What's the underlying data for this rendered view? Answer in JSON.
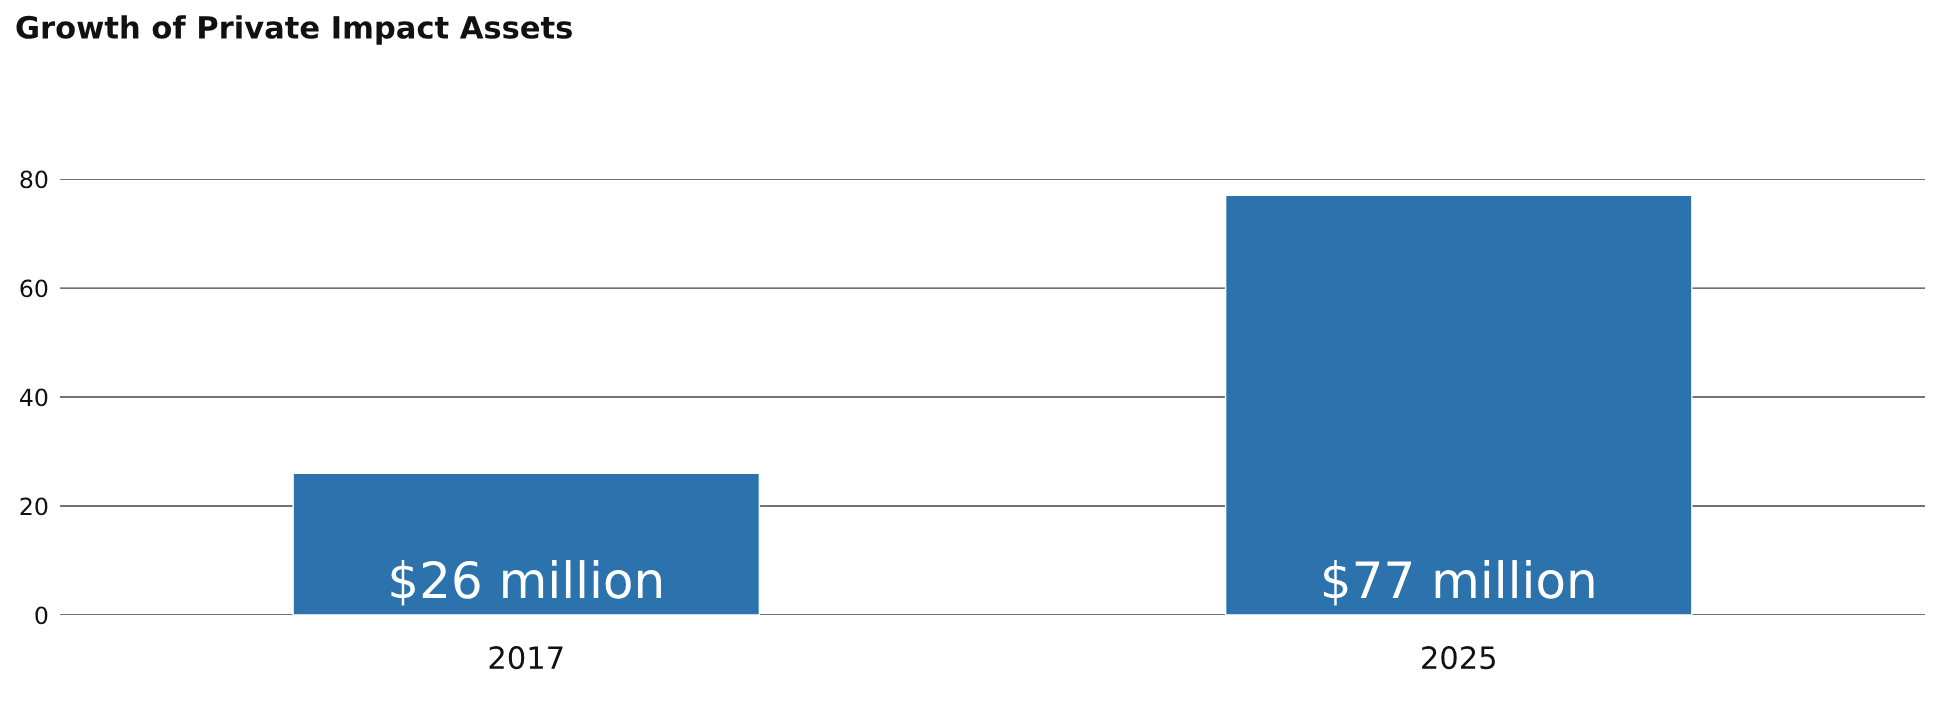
{
  "chart_data": {
    "type": "bar",
    "title": "Growth of Private Impact Assets",
    "categories": [
      "2017",
      "2025"
    ],
    "values": [
      26,
      77
    ],
    "color": "#2c73ad",
    "value_labels": [
      "$26 million",
      "$77 million"
    ],
    "ylim": [
      0,
      80
    ],
    "yticks": [
      0,
      20,
      40,
      60,
      80
    ],
    "grid": "y"
  }
}
